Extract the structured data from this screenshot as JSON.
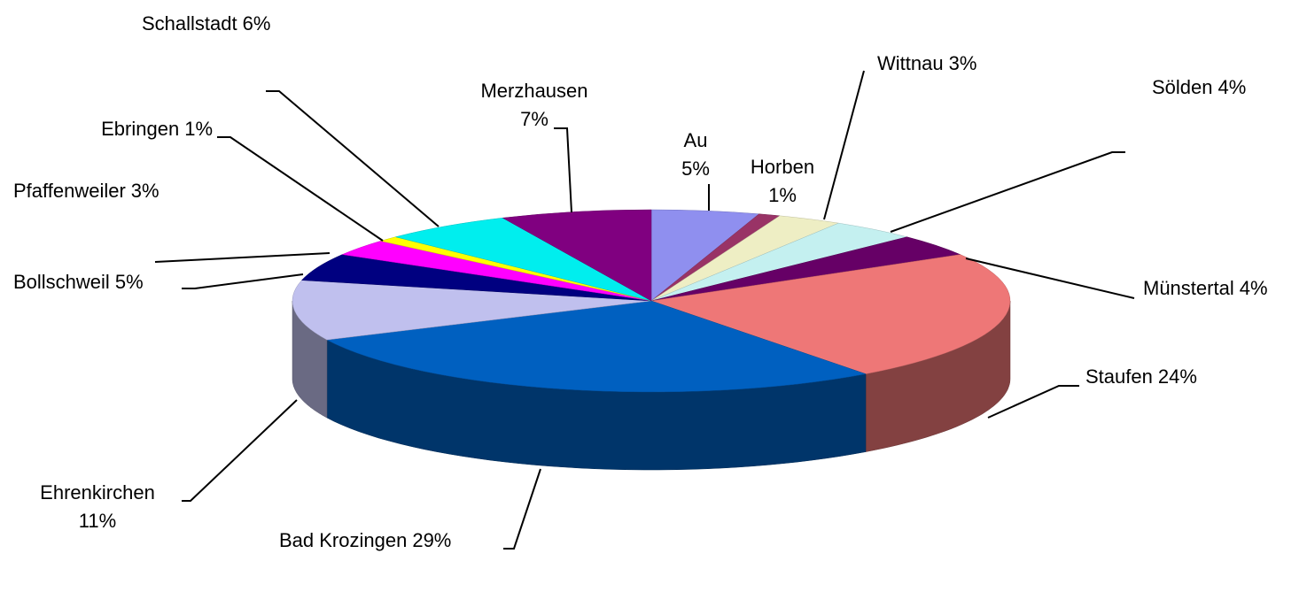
{
  "chart_data": {
    "type": "pie3d",
    "categories": [
      "Au",
      "Horben",
      "Wittnau",
      "Sölden",
      "Münstertal",
      "Staufen",
      "Bad Krozingen",
      "Ehrenkirchen",
      "Bollschweil",
      "Pfaffenweiler",
      "Ebringen",
      "Schallstadt",
      "Merzhausen"
    ],
    "values": [
      5,
      1,
      3,
      4,
      4,
      24,
      29,
      11,
      5,
      3,
      1,
      6,
      7
    ],
    "value_labels": [
      "5%",
      "1%",
      "3%",
      "4%",
      "4%",
      "24%",
      "29%",
      "11%",
      "5%",
      "3%",
      "1%",
      "6%",
      "7%"
    ],
    "colors": [
      "#8f8fef",
      "#993366",
      "#eeeec4",
      "#c4f0f0",
      "#660066",
      "#ee7777",
      "#0060c0",
      "#c0c0ee",
      "#000080",
      "#ff00ff",
      "#ffff00",
      "#00eeee",
      "#800080"
    ]
  }
}
